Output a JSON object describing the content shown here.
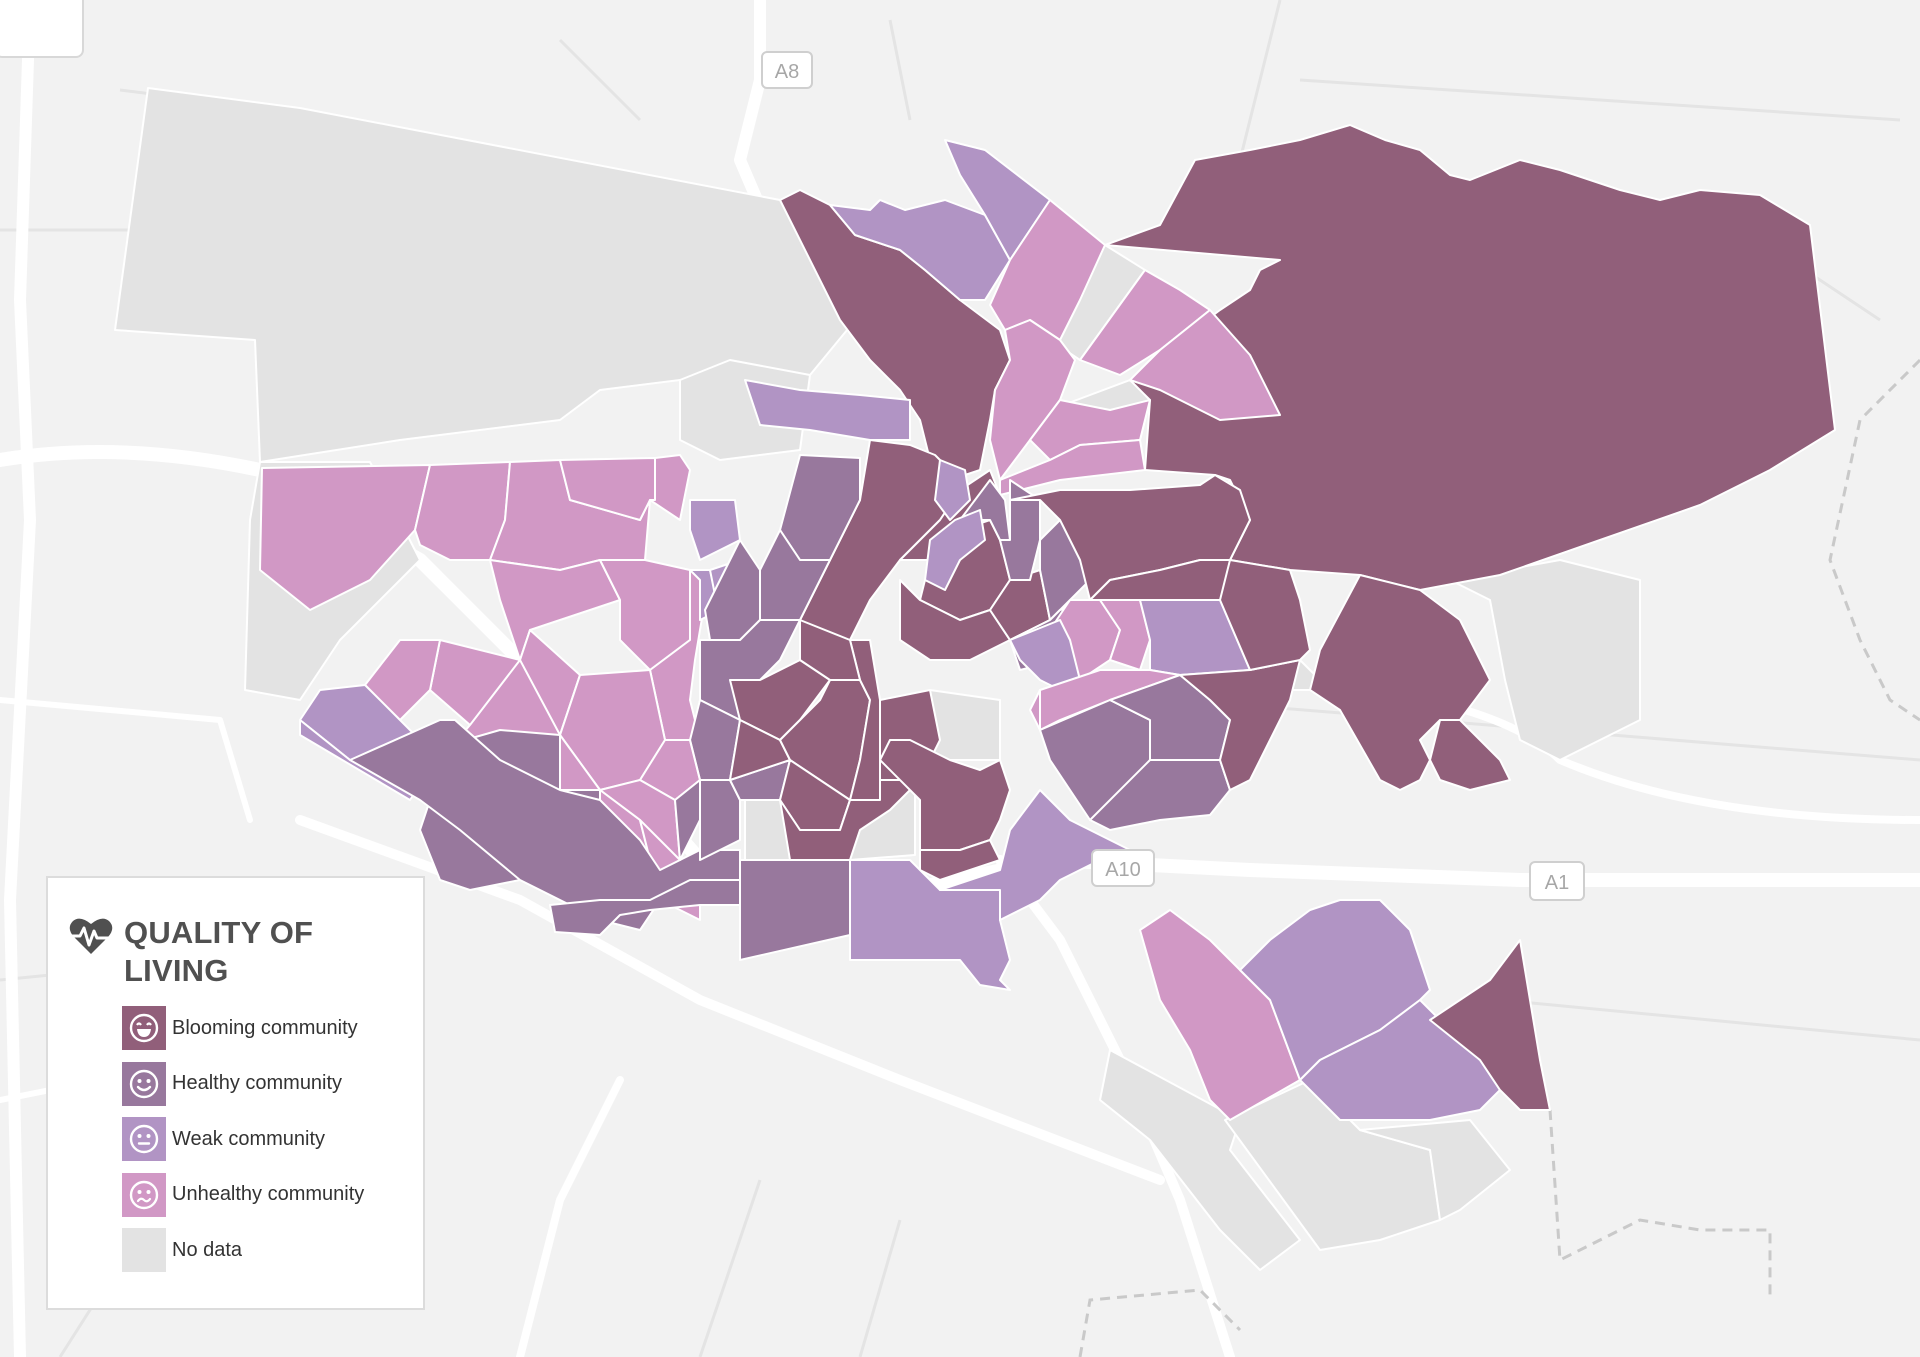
{
  "map": {
    "road_labels": [
      "A8",
      "A10",
      "A1"
    ]
  },
  "legend": {
    "title_line1": "QUALITY OF",
    "title_line2": "LIVING",
    "title_icon": "heart-pulse-icon",
    "items": [
      {
        "label": "Blooming community",
        "color": "#915f7a",
        "icon": "laughing-face-icon"
      },
      {
        "label": "Healthy community",
        "color": "#98789d",
        "icon": "smiling-face-icon"
      },
      {
        "label": "Weak community",
        "color": "#b194c4",
        "icon": "neutral-face-icon"
      },
      {
        "label": "Unhealthy community",
        "color": "#d198c5",
        "icon": "worried-face-icon"
      },
      {
        "label": "No data",
        "color": "#e3e3e3",
        "icon": ""
      }
    ]
  }
}
